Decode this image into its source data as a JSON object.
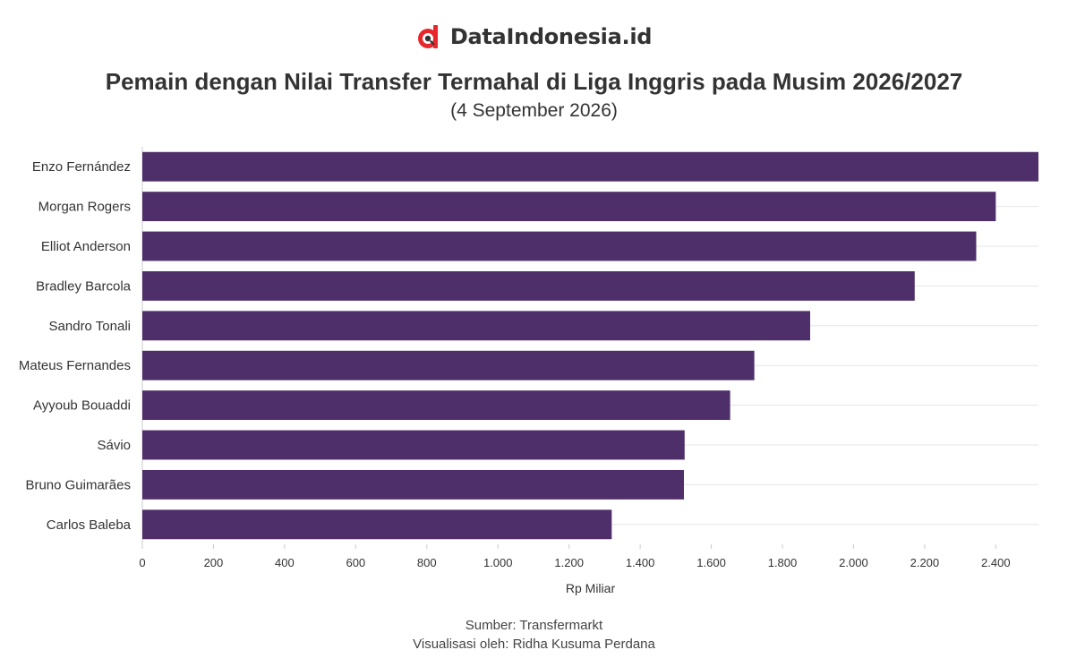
{
  "brand": {
    "name": "DataIndonesia.id",
    "accent": "#e8272c"
  },
  "footer": {
    "source": "Sumber: Transfermarkt",
    "visualization": "Visualisasi oleh: Ridha Kusuma Perdana"
  },
  "chart_data": {
    "type": "bar",
    "orientation": "horizontal",
    "title": "Pemain dengan Nilai Transfer Termahal di Liga Inggris pada Musim 2026/2027",
    "subtitle": "(4 September 2026)",
    "xlabel": "Rp Miliar",
    "ylabel": "",
    "categories": [
      "Enzo Fernández",
      "Morgan Rogers",
      "Elliot Anderson",
      "Bradley Barcola",
      "Sandro Tonali",
      "Mateus Fernandes",
      "Ayyoub Bouaddi",
      "Sávio",
      "Bruno Guimarães",
      "Carlos Baleba"
    ],
    "values": [
      2520,
      2400,
      2345,
      2172,
      1878,
      1721,
      1653,
      1525,
      1523,
      1320
    ],
    "xlim": [
      0,
      2520
    ],
    "xticks": [
      0,
      200,
      400,
      600,
      800,
      1000,
      1200,
      1400,
      1600,
      1800,
      2000,
      2200,
      2400
    ],
    "xtick_labels": [
      "0",
      "200",
      "400",
      "600",
      "800",
      "1.000",
      "1.200",
      "1.400",
      "1.600",
      "1.800",
      "2.000",
      "2.200",
      "2.400"
    ],
    "grid": true,
    "legend": "none",
    "bar_color": "#4f2f69"
  }
}
